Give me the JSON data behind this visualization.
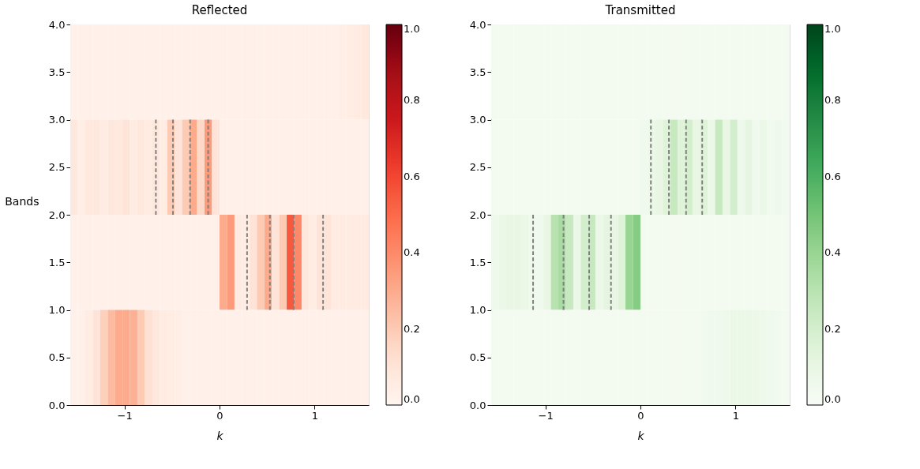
{
  "chart_data": [
    {
      "type": "heatmap",
      "title": "Reflected",
      "xlabel": "k",
      "ylabel": "Bands",
      "x": [
        -1.531,
        -1.453,
        -1.374,
        -1.296,
        -1.217,
        -1.139,
        -1.06,
        -0.982,
        -0.903,
        -0.825,
        -0.746,
        -0.668,
        -0.589,
        -0.511,
        -0.432,
        -0.354,
        -0.275,
        -0.197,
        -0.118,
        -0.04,
        0.04,
        0.118,
        0.197,
        0.275,
        0.354,
        0.432,
        0.511,
        0.589,
        0.668,
        0.746,
        0.825,
        0.903,
        0.982,
        1.06,
        1.139,
        1.217,
        1.296,
        1.374,
        1.453,
        1.531
      ],
      "xlim": [
        -1.571,
        1.571
      ],
      "xticks": [
        {
          "value": -1,
          "label": "−1"
        },
        0,
        1
      ],
      "ylim": [
        0,
        4
      ],
      "yticks": [
        {
          "value": 0,
          "label": "0.0"
        },
        {
          "value": 0.5,
          "label": "0.5"
        },
        {
          "value": 1,
          "label": "1.0"
        },
        {
          "value": 1.5,
          "label": "1.5"
        },
        {
          "value": 2,
          "label": "2.0"
        },
        {
          "value": 2.5,
          "label": "2.5"
        },
        {
          "value": 3,
          "label": "3.0"
        },
        {
          "value": 3.5,
          "label": "3.5"
        },
        {
          "value": 4,
          "label": "4.0"
        }
      ],
      "cells": [
        [
          0.03,
          0.03,
          0.03,
          0.03,
          0.03,
          0.03,
          0.03,
          0.03,
          0.03,
          0.03,
          0.03,
          0.03,
          0.03,
          0.03,
          0.03,
          0.03,
          0.03,
          0.03,
          0.03,
          0.03,
          0.03,
          0.03,
          0.03,
          0.03,
          0.03,
          0.03,
          0.03,
          0.03,
          0.03,
          0.03,
          0.03,
          0.03,
          0.03,
          0.03,
          0.03,
          0.03,
          0.04,
          0.05,
          0.06,
          0.07
        ],
        [
          0.08,
          0.04,
          0.07,
          0.08,
          0.06,
          0.08,
          0.07,
          0.1,
          0.06,
          0.08,
          0.06,
          0.08,
          0.05,
          0.2,
          0.1,
          0.2,
          0.3,
          0.15,
          0.35,
          0.1,
          0.03,
          0.03,
          0.03,
          0.03,
          0.03,
          0.03,
          0.03,
          0.03,
          0.03,
          0.03,
          0.03,
          0.03,
          0.03,
          0.03,
          0.03,
          0.03,
          0.03,
          0.03,
          0.03,
          0.03
        ],
        [
          0.03,
          0.03,
          0.03,
          0.03,
          0.03,
          0.03,
          0.03,
          0.03,
          0.03,
          0.03,
          0.03,
          0.03,
          0.03,
          0.03,
          0.03,
          0.03,
          0.03,
          0.03,
          0.03,
          0.03,
          0.3,
          0.35,
          0.06,
          0.05,
          0.1,
          0.2,
          0.3,
          0.1,
          0.2,
          0.55,
          0.4,
          0.08,
          0.05,
          0.1,
          0.1,
          0.06,
          0.06,
          0.06,
          0.06,
          0.06
        ],
        [
          0.03,
          0.03,
          0.05,
          0.1,
          0.18,
          0.25,
          0.3,
          0.3,
          0.28,
          0.2,
          0.12,
          0.08,
          0.06,
          0.05,
          0.04,
          0.03,
          0.03,
          0.03,
          0.03,
          0.03,
          0.03,
          0.03,
          0.03,
          0.03,
          0.03,
          0.03,
          0.03,
          0.03,
          0.03,
          0.03,
          0.03,
          0.03,
          0.03,
          0.03,
          0.03,
          0.03,
          0.03,
          0.03,
          0.03,
          0.03
        ]
      ],
      "clim": [
        0,
        1
      ],
      "cticks": [
        {
          "value": 0,
          "label": "0.0"
        },
        {
          "value": 0.2,
          "label": "0.2"
        },
        {
          "value": 0.4,
          "label": "0.4"
        },
        {
          "value": 0.6,
          "label": "0.6"
        },
        {
          "value": 0.8,
          "label": "0.8"
        },
        {
          "value": 1,
          "label": "1.0"
        }
      ],
      "series": [
        {
          "type": "line",
          "color": "#808080",
          "line_style": "dashed",
          "x": [
            -0.67,
            -0.67
          ],
          "values": [
            2,
            3
          ]
        },
        {
          "type": "line",
          "color": "#808080",
          "line_style": "dashed",
          "x": [
            -0.49,
            -0.49
          ],
          "values": [
            2,
            3
          ]
        },
        {
          "type": "line",
          "color": "#808080",
          "line_style": "dashed",
          "x": [
            -0.31,
            -0.31
          ],
          "values": [
            2,
            3
          ]
        },
        {
          "type": "line",
          "color": "#808080",
          "line_style": "dashed",
          "x": [
            -0.12,
            -0.12
          ],
          "values": [
            2,
            3
          ]
        },
        {
          "type": "line",
          "color": "#808080",
          "line_style": "dashed",
          "x": [
            0.29,
            0.29
          ],
          "values": [
            1,
            2
          ]
        },
        {
          "type": "line",
          "color": "#808080",
          "line_style": "dashed",
          "x": [
            0.53,
            0.53
          ],
          "values": [
            1,
            2
          ]
        },
        {
          "type": "line",
          "color": "#808080",
          "line_style": "dashed",
          "x": [
            0.78,
            0.78
          ],
          "values": [
            1,
            2
          ]
        },
        {
          "type": "line",
          "color": "#808080",
          "line_style": "dashed",
          "x": [
            1.09,
            1.09
          ],
          "values": [
            1,
            2
          ]
        }
      ]
    },
    {
      "type": "heatmap",
      "title": "Transmitted",
      "xlabel": "k",
      "x": [
        -1.531,
        -1.453,
        -1.374,
        -1.296,
        -1.217,
        -1.139,
        -1.06,
        -0.982,
        -0.903,
        -0.825,
        -0.746,
        -0.668,
        -0.589,
        -0.511,
        -0.432,
        -0.354,
        -0.275,
        -0.197,
        -0.118,
        -0.04,
        0.04,
        0.118,
        0.197,
        0.275,
        0.354,
        0.432,
        0.511,
        0.589,
        0.668,
        0.746,
        0.825,
        0.903,
        0.982,
        1.06,
        1.139,
        1.217,
        1.296,
        1.374,
        1.453,
        1.531
      ],
      "xlim": [
        -1.571,
        1.571
      ],
      "xticks": [
        {
          "value": -1,
          "label": "−1"
        },
        0,
        1
      ],
      "ylim": [
        0,
        4
      ],
      "yticks": [
        {
          "value": 0,
          "label": "0.0"
        },
        {
          "value": 0.5,
          "label": "0.5"
        },
        {
          "value": 1,
          "label": "1.0"
        },
        {
          "value": 1.5,
          "label": "1.5"
        },
        {
          "value": 2,
          "label": "2.0"
        },
        {
          "value": 2.5,
          "label": "2.5"
        },
        {
          "value": 3,
          "label": "3.0"
        },
        {
          "value": 3.5,
          "label": "3.5"
        },
        {
          "value": 4,
          "label": "4.0"
        }
      ],
      "cells": [
        [
          0.03,
          0.03,
          0.03,
          0.03,
          0.03,
          0.03,
          0.03,
          0.03,
          0.03,
          0.03,
          0.03,
          0.03,
          0.03,
          0.03,
          0.03,
          0.03,
          0.03,
          0.03,
          0.03,
          0.03,
          0.03,
          0.03,
          0.03,
          0.03,
          0.03,
          0.03,
          0.03,
          0.03,
          0.03,
          0.03,
          0.03,
          0.03,
          0.03,
          0.03,
          0.03,
          0.03,
          0.03,
          0.03,
          0.03,
          0.03
        ],
        [
          0.03,
          0.03,
          0.03,
          0.03,
          0.03,
          0.03,
          0.03,
          0.03,
          0.03,
          0.03,
          0.03,
          0.03,
          0.03,
          0.03,
          0.03,
          0.03,
          0.03,
          0.03,
          0.03,
          0.03,
          0.05,
          0.08,
          0.1,
          0.15,
          0.25,
          0.15,
          0.2,
          0.1,
          0.15,
          0.08,
          0.25,
          0.1,
          0.2,
          0.06,
          0.12,
          0.05,
          0.08,
          0.04,
          0.06,
          0.04
        ],
        [
          0.06,
          0.08,
          0.1,
          0.1,
          0.08,
          0.06,
          0.05,
          0.1,
          0.3,
          0.35,
          0.25,
          0.08,
          0.2,
          0.25,
          0.08,
          0.12,
          0.1,
          0.15,
          0.4,
          0.45,
          0.03,
          0.03,
          0.03,
          0.03,
          0.03,
          0.03,
          0.03,
          0.03,
          0.03,
          0.03,
          0.03,
          0.03,
          0.03,
          0.03,
          0.03,
          0.03,
          0.03,
          0.03,
          0.03,
          0.03
        ],
        [
          0.03,
          0.03,
          0.03,
          0.03,
          0.03,
          0.03,
          0.03,
          0.03,
          0.03,
          0.03,
          0.03,
          0.03,
          0.03,
          0.03,
          0.03,
          0.03,
          0.03,
          0.03,
          0.03,
          0.03,
          0.03,
          0.03,
          0.03,
          0.03,
          0.03,
          0.03,
          0.03,
          0.03,
          0.04,
          0.05,
          0.05,
          0.06,
          0.08,
          0.08,
          0.08,
          0.07,
          0.06,
          0.05,
          0.04,
          0.03
        ]
      ],
      "clim": [
        0,
        1
      ],
      "cticks": [
        {
          "value": 0,
          "label": "0.0"
        },
        {
          "value": 0.2,
          "label": "0.2"
        },
        {
          "value": 0.4,
          "label": "0.4"
        },
        {
          "value": 0.6,
          "label": "0.6"
        },
        {
          "value": 0.8,
          "label": "0.8"
        },
        {
          "value": 1,
          "label": "1.0"
        }
      ],
      "series": [
        {
          "type": "line",
          "color": "#808080",
          "line_style": "dashed",
          "x": [
            0.11,
            0.11
          ],
          "values": [
            2,
            3
          ]
        },
        {
          "type": "line",
          "color": "#808080",
          "line_style": "dashed",
          "x": [
            0.3,
            0.3
          ],
          "values": [
            2,
            3
          ]
        },
        {
          "type": "line",
          "color": "#808080",
          "line_style": "dashed",
          "x": [
            0.48,
            0.48
          ],
          "values": [
            2,
            3
          ]
        },
        {
          "type": "line",
          "color": "#808080",
          "line_style": "dashed",
          "x": [
            0.65,
            0.65
          ],
          "values": [
            2,
            3
          ]
        },
        {
          "type": "line",
          "color": "#808080",
          "line_style": "dashed",
          "x": [
            -1.13,
            -1.13
          ],
          "values": [
            1,
            2
          ]
        },
        {
          "type": "line",
          "color": "#808080",
          "line_style": "dashed",
          "x": [
            -0.81,
            -0.81
          ],
          "values": [
            1,
            2
          ]
        },
        {
          "type": "line",
          "color": "#808080",
          "line_style": "dashed",
          "x": [
            -0.54,
            -0.54
          ],
          "values": [
            1,
            2
          ]
        },
        {
          "type": "line",
          "color": "#808080",
          "line_style": "dashed",
          "x": [
            -0.31,
            -0.31
          ],
          "values": [
            1,
            2
          ]
        }
      ]
    }
  ]
}
